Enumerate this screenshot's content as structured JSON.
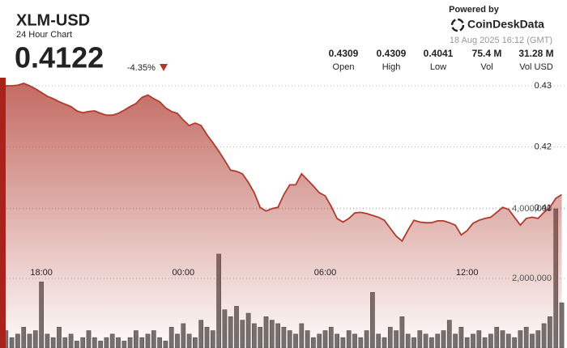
{
  "header": {
    "symbol": "XLM-USD",
    "subtitle": "24 Hour Chart",
    "price": "0.4122",
    "change": "-4.35%",
    "powered_by": "Powered by",
    "brand": "CoinDeskData",
    "timestamp": "18 Aug 2025 16:12 (GMT)",
    "stats": [
      {
        "value": "0.4309",
        "label": "Open"
      },
      {
        "value": "0.4309",
        "label": "High"
      },
      {
        "value": "0.4041",
        "label": "Low"
      },
      {
        "value": "75.4 M",
        "label": "Vol"
      },
      {
        "value": "31.28 M",
        "label": "Vol USD"
      }
    ]
  },
  "chart_data": {
    "type": "line",
    "categories": [
      null,
      null,
      null,
      null,
      null,
      null,
      null,
      "18:00",
      null,
      null,
      null,
      null,
      null,
      null,
      null,
      null,
      null,
      null,
      null,
      null,
      null,
      null,
      null,
      null,
      null,
      null,
      null,
      null,
      null,
      null,
      null,
      "00:00",
      null,
      null,
      null,
      null,
      null,
      null,
      null,
      null,
      null,
      null,
      null,
      null,
      null,
      null,
      null,
      null,
      null,
      null,
      null,
      null,
      null,
      null,
      null,
      "06:00",
      null,
      null,
      null,
      null,
      null,
      null,
      null,
      null,
      null,
      null,
      null,
      null,
      null,
      null,
      null,
      null,
      null,
      null,
      null,
      null,
      null,
      null,
      null,
      "12:00",
      null,
      null,
      null,
      null,
      null,
      null,
      null,
      null,
      null,
      null,
      null,
      null,
      null,
      null,
      null,
      null
    ],
    "series": [
      {
        "name": "Price",
        "type": "line",
        "color": "#b03a2e",
        "values": [
          0.4301,
          0.43,
          0.43,
          0.4301,
          0.4304,
          0.43,
          0.4295,
          0.4289,
          0.4283,
          0.4279,
          0.4274,
          0.427,
          0.4266,
          0.4259,
          0.4256,
          0.4258,
          0.4259,
          0.4255,
          0.4252,
          0.4252,
          0.4255,
          0.426,
          0.4266,
          0.4271,
          0.4281,
          0.4285,
          0.4279,
          0.4274,
          0.4264,
          0.4258,
          0.4255,
          0.4244,
          0.4235,
          0.4239,
          0.4235,
          0.422,
          0.4207,
          0.4193,
          0.4178,
          0.4162,
          0.416,
          0.4156,
          0.4142,
          0.4125,
          0.4101,
          0.4095,
          0.4099,
          0.4101,
          0.4122,
          0.4138,
          0.4138,
          0.4156,
          0.4146,
          0.4136,
          0.4125,
          0.412,
          0.4103,
          0.4083,
          0.4077,
          0.4083,
          0.4092,
          0.4093,
          0.4091,
          0.4088,
          0.4085,
          0.408,
          0.4067,
          0.4054,
          0.4046,
          0.4064,
          0.408,
          0.4077,
          0.4076,
          0.4076,
          0.4079,
          0.4079,
          0.4076,
          0.4072,
          0.4056,
          0.4063,
          0.4075,
          0.408,
          0.4083,
          0.4085,
          0.4093,
          0.4101,
          0.4098,
          0.4085,
          0.4072,
          0.4083,
          0.4085,
          0.4083,
          0.4093,
          0.4101,
          0.4116,
          0.4122
        ]
      },
      {
        "name": "Volume",
        "type": "bar",
        "axis": "y2",
        "color": "#6b6b68",
        "values": [
          300000,
          500000,
          300000,
          400000,
          600000,
          400000,
          500000,
          1900000,
          400000,
          300000,
          600000,
          300000,
          400000,
          200000,
          300000,
          500000,
          300000,
          200000,
          300000,
          400000,
          300000,
          200000,
          300000,
          500000,
          300000,
          400000,
          500000,
          300000,
          200000,
          600000,
          400000,
          700000,
          400000,
          300000,
          800000,
          600000,
          500000,
          2700000,
          1100000,
          900000,
          1200000,
          800000,
          1000000,
          700000,
          600000,
          900000,
          800000,
          700000,
          600000,
          500000,
          400000,
          700000,
          500000,
          300000,
          400000,
          500000,
          600000,
          400000,
          300000,
          500000,
          400000,
          300000,
          500000,
          1600000,
          400000,
          300000,
          600000,
          500000,
          900000,
          400000,
          300000,
          500000,
          400000,
          300000,
          400000,
          500000,
          800000,
          400000,
          600000,
          300000,
          400000,
          500000,
          300000,
          400000,
          600000,
          500000,
          400000,
          300000,
          500000,
          600000,
          400000,
          500000,
          700000,
          900000,
          4000000,
          1300000
        ]
      }
    ],
    "ylim": [
      0.3871,
      0.4308
    ],
    "yticks": [
      0.41,
      0.42,
      0.43
    ],
    "y2lim": [
      0,
      7674000
    ],
    "y2ticks": [
      {
        "value": 2000000,
        "label": "2,000,000"
      },
      {
        "value": 4000000,
        "label": "4,000,000"
      }
    ],
    "grid": true
  }
}
